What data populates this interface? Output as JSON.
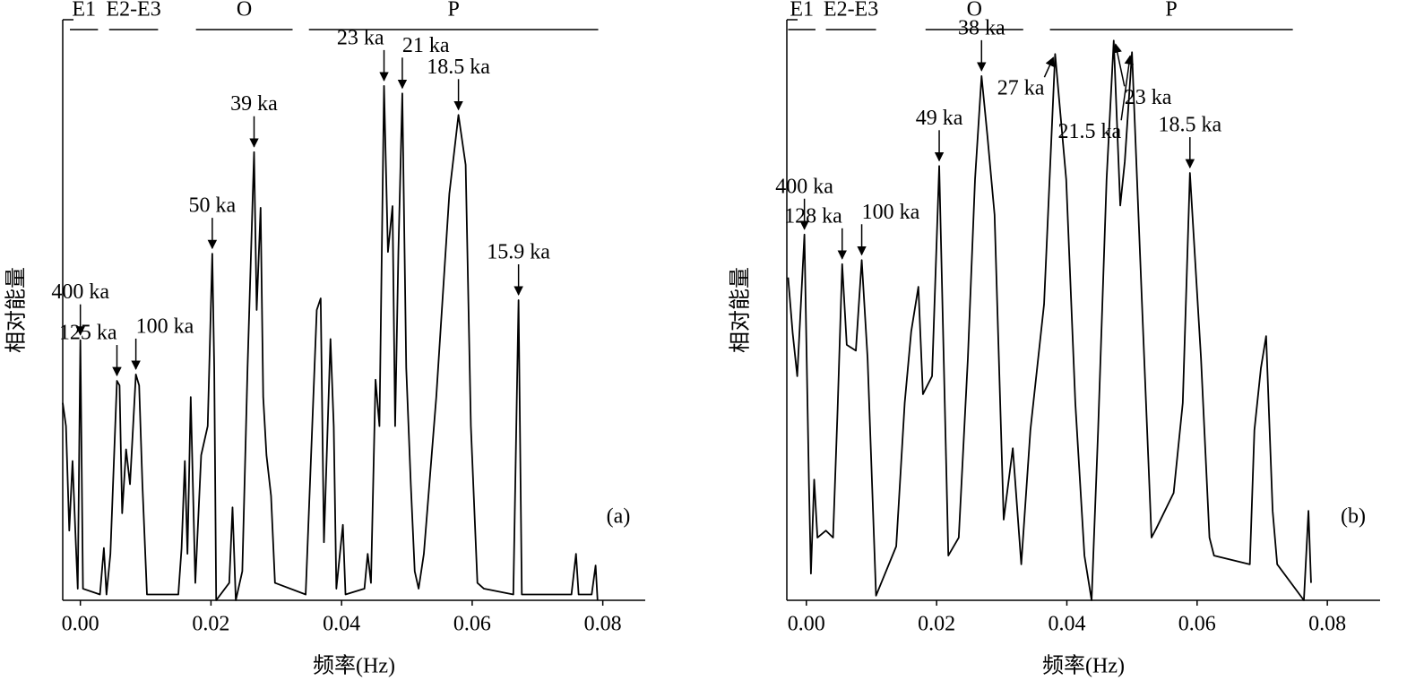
{
  "chart_data": [
    {
      "type": "line",
      "panel_label": "(a)",
      "xlabel": "频率(Hz)",
      "ylabel": "相对能量",
      "color": "#000000",
      "xlim": [
        -0.0027,
        0.0865
      ],
      "ylim": [
        0,
        100
      ],
      "xticks": [
        {
          "value": 0,
          "label": "0.00"
        },
        0.02,
        0.04,
        0.06,
        0.08
      ],
      "x": [
        -0.0027,
        -0.0022,
        -0.0017,
        -0.0012,
        -0.0007,
        -0.0004,
        0.0,
        0.0004,
        0.003,
        0.0036,
        0.004,
        0.0046,
        0.0056,
        0.006,
        0.0064,
        0.007,
        0.0076,
        0.0085,
        0.009,
        0.0095,
        0.0102,
        0.015,
        0.0155,
        0.016,
        0.0164,
        0.0169,
        0.0176,
        0.0185,
        0.0195,
        0.0202,
        0.0205,
        0.0208,
        0.0228,
        0.0233,
        0.0238,
        0.0248,
        0.0256,
        0.0266,
        0.027,
        0.0276,
        0.028,
        0.0285,
        0.0292,
        0.0298,
        0.0345,
        0.0362,
        0.0368,
        0.0373,
        0.0383,
        0.0388,
        0.0392,
        0.0402,
        0.0406,
        0.0435,
        0.044,
        0.0445,
        0.0452,
        0.0458,
        0.0465,
        0.0471,
        0.0478,
        0.0482,
        0.0487,
        0.0493,
        0.0499,
        0.0506,
        0.0512,
        0.0518,
        0.0526,
        0.0545,
        0.0565,
        0.0579,
        0.059,
        0.0598,
        0.0608,
        0.0618,
        0.0663,
        0.0671,
        0.0676,
        0.0752,
        0.0759,
        0.0763,
        0.0783,
        0.0789,
        0.0792
      ],
      "values": [
        34,
        30,
        12,
        24,
        10,
        2,
        44.8,
        2,
        1,
        9,
        1,
        8,
        37.8,
        37,
        15,
        26,
        20,
        38.9,
        37,
        20,
        1,
        1,
        9,
        24,
        8,
        35,
        3,
        25,
        30,
        59.7,
        40,
        0,
        3,
        16,
        0,
        5,
        40,
        77.2,
        50,
        67.6,
        35,
        25,
        18,
        3,
        1,
        50,
        52,
        10,
        45,
        30,
        2,
        13,
        1,
        2,
        8,
        3,
        38,
        30,
        88.6,
        60,
        67.9,
        30,
        60,
        87.3,
        40,
        20,
        5,
        2,
        8,
        35,
        70,
        83.6,
        75,
        30,
        3,
        2,
        1,
        51.7,
        1,
        1,
        8,
        1,
        1,
        6,
        0
      ],
      "bands": [
        {
          "label": "E1",
          "x": [
            -0.0016,
            0.0027
          ]
        },
        {
          "label": "E2-E3",
          "x": [
            0.0044,
            0.0119
          ]
        },
        {
          "label": "O",
          "x": [
            0.0177,
            0.0325
          ]
        },
        {
          "label": "P",
          "x": [
            0.035,
            0.0793
          ]
        }
      ],
      "annotations": [
        {
          "text": "400 ka",
          "x": 0.0,
          "y": 44.8
        },
        {
          "text": "125 ka",
          "x": 0.0056,
          "y": 37.8
        },
        {
          "text": "100 ka",
          "x": 0.0085,
          "y": 38.9
        },
        {
          "text": "50 ka",
          "x": 0.0202,
          "y": 59.7
        },
        {
          "text": "39 ka",
          "x": 0.0266,
          "y": 77.2
        },
        {
          "text": "23 ka",
          "x": 0.0465,
          "y": 88.6
        },
        {
          "text": "21 ka",
          "x": 0.0493,
          "y": 87.3
        },
        {
          "text": "18.5 ka",
          "x": 0.0579,
          "y": 83.6
        },
        {
          "text": "15.9 ka",
          "x": 0.0671,
          "y": 51.7
        }
      ]
    },
    {
      "type": "line",
      "panel_label": "(b)",
      "xlabel": "频率(Hz)",
      "ylabel": "相对能量",
      "color": "#000000",
      "xlim": [
        -0.003,
        0.0881
      ],
      "ylim": [
        0,
        100
      ],
      "xticks": [
        {
          "value": 0,
          "label": "0.00"
        },
        0.02,
        0.04,
        0.06,
        0.08
      ],
      "x": [
        -0.0028,
        -0.0021,
        -0.0014,
        -0.0003,
        0.0004,
        0.0007,
        0.0012,
        0.0017,
        0.003,
        0.0041,
        0.0048,
        0.0055,
        0.0062,
        0.0076,
        0.0085,
        0.0094,
        0.0107,
        0.0138,
        0.0151,
        0.0161,
        0.0172,
        0.0179,
        0.0193,
        0.0204,
        0.0218,
        0.0234,
        0.0248,
        0.0259,
        0.0269,
        0.0278,
        0.0289,
        0.0303,
        0.0317,
        0.033,
        0.0344,
        0.0365,
        0.0382,
        0.0399,
        0.0413,
        0.0427,
        0.0438,
        0.0448,
        0.0461,
        0.0472,
        0.0482,
        0.0489,
        0.05,
        0.0516,
        0.053,
        0.0537,
        0.0564,
        0.0578,
        0.0589,
        0.0606,
        0.0619,
        0.0626,
        0.0681,
        0.0688,
        0.0698,
        0.0706,
        0.0716,
        0.0723,
        0.0764,
        0.0771,
        0.0775
      ],
      "values": [
        55.6,
        46,
        38.6,
        63,
        20,
        4.6,
        20.8,
        10.8,
        12,
        10.8,
        33,
        57.9,
        44,
        43,
        58.6,
        41.7,
        0.8,
        9.3,
        34,
        46.3,
        54,
        35.5,
        38.6,
        74.8,
        7.7,
        10.8,
        41.7,
        72.5,
        90.3,
        80,
        66.4,
        13.9,
        26.2,
        6.2,
        29.3,
        51,
        94.1,
        72.5,
        34,
        7.7,
        0,
        29.3,
        72.5,
        96.4,
        68,
        75.6,
        94.4,
        49.4,
        10.8,
        12.3,
        18.5,
        34,
        73.6,
        41.7,
        10.8,
        7.7,
        6.2,
        29.3,
        40,
        45.5,
        15.4,
        6.2,
        0,
        15.4,
        3
      ],
      "bands": [
        {
          "label": "E1",
          "x": [
            -0.0028,
            0.0014
          ]
        },
        {
          "label": "E2-E3",
          "x": [
            0.003,
            0.0107
          ]
        },
        {
          "label": "O",
          "x": [
            0.0183,
            0.0333
          ]
        },
        {
          "label": "P",
          "x": [
            0.0374,
            0.0747
          ]
        }
      ],
      "annotations": [
        {
          "text": "400 ka",
          "x": -0.0003,
          "y": 63
        },
        {
          "text": "128 ka",
          "x": 0.0055,
          "y": 57.9
        },
        {
          "text": "100 ka",
          "x": 0.0085,
          "y": 58.6
        },
        {
          "text": "49 ka",
          "x": 0.0204,
          "y": 74.8
        },
        {
          "text": "38 ka",
          "x": 0.0269,
          "y": 90.3
        },
        {
          "text": "27 ka",
          "x": 0.0382,
          "y": 94.1
        },
        {
          "text": "23 ka",
          "x": 0.0472,
          "y": 96.4
        },
        {
          "text": "21.5 ka",
          "x": 0.05,
          "y": 94.4
        },
        {
          "text": "18.5 ka",
          "x": 0.0589,
          "y": 73.6
        }
      ]
    }
  ]
}
